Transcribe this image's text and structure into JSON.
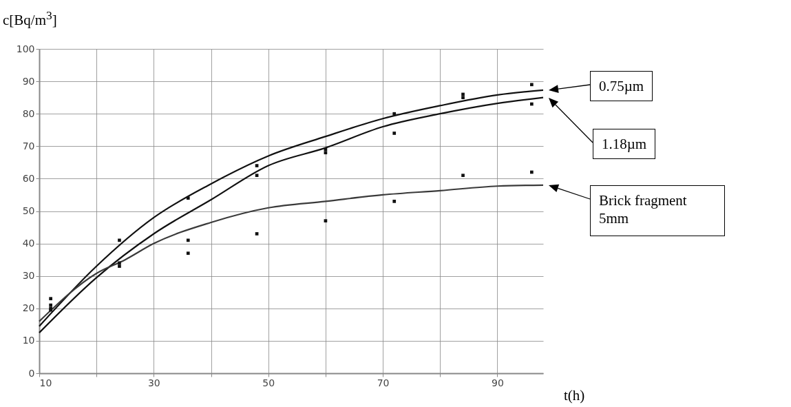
{
  "chart_data": {
    "type": "line",
    "xlabel": "t(h)",
    "ylabel": "c[Bq/m$^{3}$]",
    "xlim": [
      10,
      98
    ],
    "ylim": [
      0,
      100
    ],
    "xticks": [
      10,
      {
        "value": 20,
        "label": null
      },
      30,
      {
        "value": 40,
        "label": null
      },
      50,
      {
        "value": 60,
        "label": null
      },
      70,
      {
        "value": 80,
        "label": null
      },
      90
    ],
    "yticks": [
      0,
      10,
      20,
      30,
      40,
      50,
      60,
      70,
      80,
      90,
      100
    ],
    "grid": true,
    "legend": false,
    "marker": "none",
    "line_style": "solid",
    "series": [
      {
        "name": "0.75µm",
        "color": "#111111",
        "x": [
          10,
          20,
          30,
          40,
          50,
          60,
          70,
          80,
          90,
          98
        ],
        "values": [
          14.5,
          33,
          48,
          58.4,
          67,
          73,
          78.5,
          82.5,
          85.8,
          87.3
        ]
      },
      {
        "name": "1.18µm",
        "color": "#111111",
        "x": [
          10,
          20,
          30,
          40,
          50,
          60,
          70,
          80,
          90,
          98
        ],
        "values": [
          12.5,
          29.5,
          43,
          53.5,
          64,
          69.5,
          76,
          80,
          83.2,
          85
        ]
      },
      {
        "name": "Brick fragment 5mm",
        "color": "#3a3a3a",
        "x": [
          10,
          20,
          25,
          30,
          40,
          50,
          60,
          70,
          80,
          90,
          98
        ],
        "values": [
          16,
          30.8,
          35,
          40,
          46.5,
          51,
          53,
          55,
          56.3,
          57.7,
          58
        ]
      },
      {
        "type": "scatter",
        "marker": "square",
        "color": "#111111",
        "x": [
          12,
          12,
          12,
          12,
          24,
          24,
          24,
          36,
          36,
          36,
          48,
          48,
          48,
          60,
          60,
          60,
          72,
          72,
          72,
          84,
          84,
          84,
          96,
          96,
          96
        ],
        "values": [
          23,
          21,
          20,
          19.5,
          41,
          34,
          33,
          54,
          41,
          37,
          64,
          61,
          43,
          69,
          68,
          47,
          80,
          74,
          53,
          86,
          85,
          61,
          89,
          83,
          62
        ]
      }
    ]
  }
}
